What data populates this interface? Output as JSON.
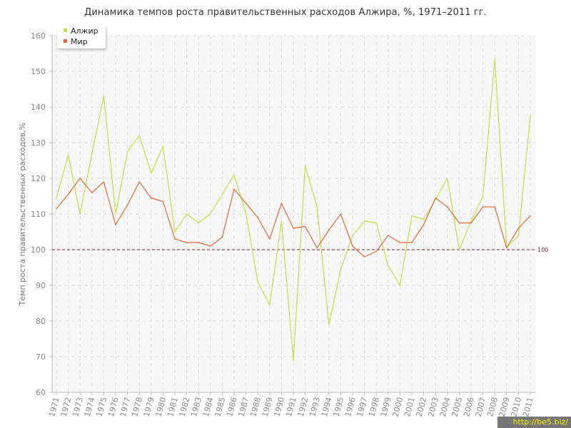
{
  "title": "Динамика темпов роста правительственных расходов Алжира, %, 1971–2011 гг.",
  "watermark": "http://be5.biz/",
  "legend": {
    "items": [
      {
        "label": "Алжир",
        "color": "#c4df4b"
      },
      {
        "label": "Мир",
        "color": "#e06a3c"
      }
    ]
  },
  "chart_data": {
    "type": "line",
    "title": "Динамика темпов роста правительственных расходов Алжира, %, 1971–2011 гг.",
    "xlabel": "",
    "ylabel": "Темп роста правительственных расходов,%",
    "ylim": [
      60,
      160
    ],
    "yticks": [
      60,
      70,
      80,
      90,
      100,
      110,
      120,
      130,
      140,
      150,
      160
    ],
    "grid": true,
    "legend_position": "top-left",
    "reference_line": {
      "value": 100,
      "label": "100",
      "color": "#8b1c2c"
    },
    "categories": [
      "1971",
      "1972",
      "1973",
      "1974",
      "1975",
      "1976",
      "1977",
      "1978",
      "1979",
      "1980",
      "1981",
      "1982",
      "1983",
      "1984",
      "1985",
      "1986",
      "1987",
      "1988",
      "1989",
      "1990",
      "1991",
      "1992",
      "1993",
      "1994",
      "1995",
      "1996",
      "1997",
      "1998",
      "1999",
      "2000",
      "2001",
      "2002",
      "2003",
      "2004",
      "2005",
      "2006",
      "2007",
      "2008",
      "2009",
      "2010",
      "2011"
    ],
    "series": [
      {
        "name": "Алжир",
        "color": "#c4df4b",
        "values": [
          114.5,
          126.5,
          110.0,
          127.0,
          143.0,
          110.0,
          127.5,
          132.0,
          121.5,
          129.0,
          105.0,
          110.0,
          107.5,
          110.0,
          115.5,
          121.0,
          110.0,
          91.0,
          84.5,
          108.0,
          69.0,
          123.5,
          112.0,
          79.0,
          94.5,
          104.0,
          108.0,
          107.5,
          95.5,
          90.0,
          109.5,
          108.5,
          114.0,
          120.0,
          100.0,
          108.0,
          115.0,
          153.5,
          100.5,
          104.0,
          137.5
        ]
      },
      {
        "name": "Мир",
        "color": "#e06a3c",
        "values": [
          111.5,
          115.5,
          120.0,
          116.0,
          119.0,
          107.0,
          112.5,
          119.0,
          114.5,
          113.5,
          103.0,
          102.0,
          102.0,
          101.0,
          103.5,
          117.0,
          113.0,
          109.0,
          103.0,
          113.0,
          106.0,
          106.5,
          100.5,
          105.5,
          110.0,
          101.0,
          98.0,
          99.5,
          104.0,
          102.0,
          102.0,
          107.0,
          114.5,
          112.0,
          107.5,
          107.5,
          112.0,
          112.0,
          100.5,
          106.0,
          109.5
        ]
      }
    ]
  }
}
